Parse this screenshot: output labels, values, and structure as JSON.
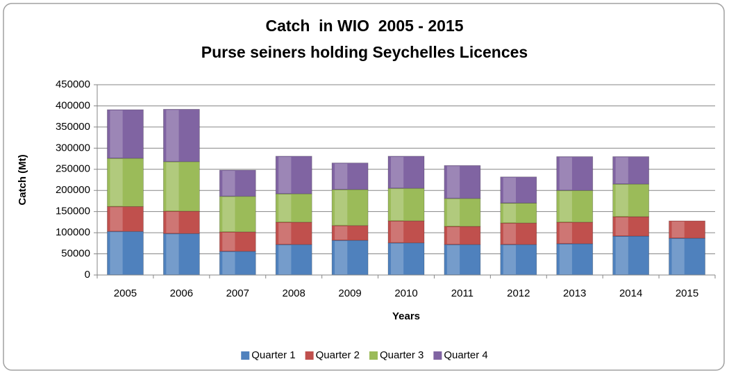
{
  "chart_data": {
    "type": "stacked_bar",
    "title": "Catch  in WIO  2005 - 2015",
    "subtitle": "Purse seiners holding Seychelles Licences",
    "x_label": "Years",
    "y_label": "Catch (Mt)",
    "categories": [
      "2005",
      "2006",
      "2007",
      "2008",
      "2009",
      "2010",
      "2011",
      "2012",
      "2013",
      "2014",
      "2015"
    ],
    "series": [
      {
        "name": "Quarter 1",
        "color": "#4f81bd",
        "values": [
          103000,
          98000,
          56000,
          72000,
          82000,
          76000,
          72000,
          72000,
          74000,
          92000,
          87000
        ]
      },
      {
        "name": "Quarter 2",
        "color": "#c0504d",
        "values": [
          59000,
          53000,
          46000,
          53000,
          35000,
          52000,
          43000,
          51000,
          51000,
          46000,
          41000
        ]
      },
      {
        "name": "Quarter 3",
        "color": "#9bbb59",
        "values": [
          114000,
          117000,
          84000,
          67000,
          85000,
          77000,
          66000,
          47000,
          75000,
          77000,
          null
        ]
      },
      {
        "name": "Quarter 4",
        "color": "#8064a2",
        "values": [
          115000,
          124000,
          62000,
          89000,
          63000,
          76000,
          78000,
          62000,
          80000,
          65000,
          null
        ]
      }
    ],
    "ylim": [
      0,
      450000
    ],
    "yticks": [
      0,
      50000,
      100000,
      150000,
      200000,
      250000,
      300000,
      350000,
      400000,
      450000
    ],
    "grid": true,
    "legend": "bottom"
  }
}
